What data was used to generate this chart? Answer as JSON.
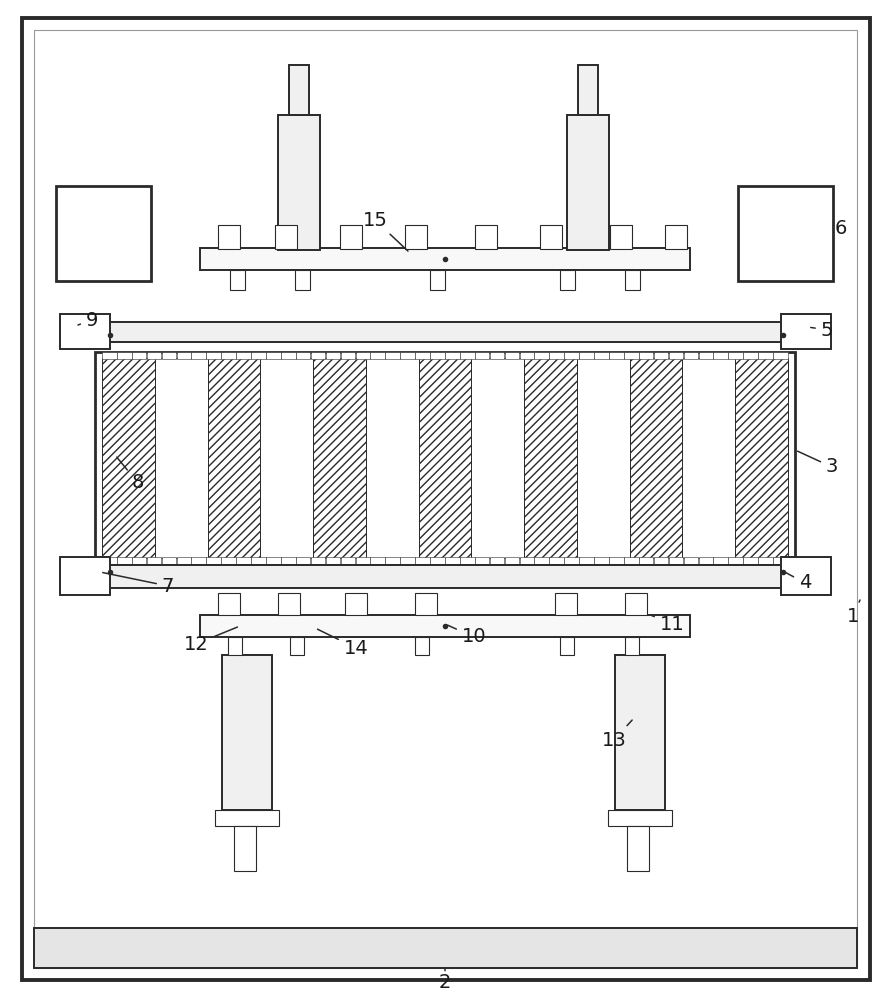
{
  "bg_color": "#ffffff",
  "line_color": "#2a2a2a",
  "label_color": "#1a1a1a",
  "fig_width": 8.91,
  "fig_height": 10.0,
  "lw": 1.4,
  "lw_thin": 0.8,
  "lw_thick": 2.0
}
